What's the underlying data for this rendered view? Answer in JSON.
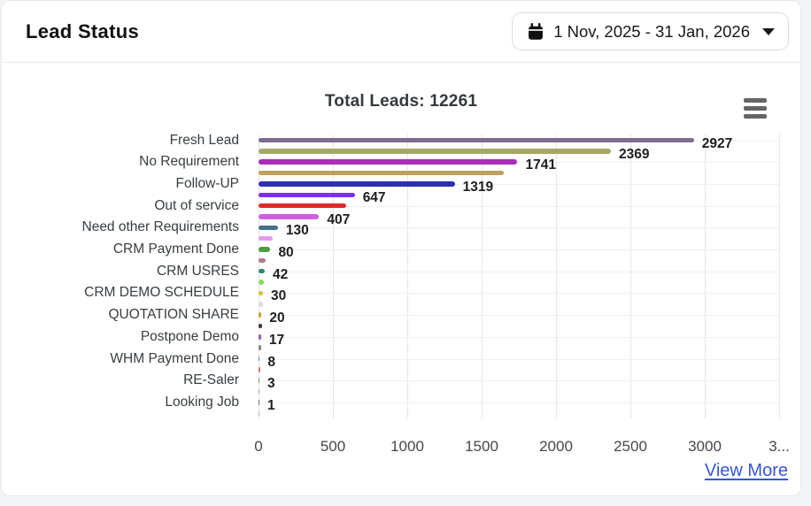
{
  "page": {
    "background": "#f3f4f6",
    "card_border": "#e5e7ea"
  },
  "header": {
    "title": "Lead Status",
    "date_range": "1 Nov, 2025 - 31 Jan, 2026"
  },
  "footer": {
    "view_more_label": "View More"
  },
  "icons": {
    "calendar": "calendar-icon",
    "caret": "caret-down-icon",
    "menu": "hamburger-menu-icon"
  },
  "chart_data": {
    "type": "bar",
    "orientation": "horizontal",
    "title": "Total Leads: 12261",
    "total_leads": 12261,
    "xlim": [
      0,
      3500
    ],
    "x_ticks": [
      {
        "value": 0,
        "label": "0"
      },
      {
        "value": 500,
        "label": "500"
      },
      {
        "value": 1000,
        "label": "1000"
      },
      {
        "value": 1500,
        "label": "1500"
      },
      {
        "value": 2000,
        "label": "2000"
      },
      {
        "value": 2500,
        "label": "2500"
      },
      {
        "value": 3000,
        "label": "3000"
      },
      {
        "value": 3500,
        "label": "3..."
      }
    ],
    "grid": true,
    "y_label_skip": "alternate rows have their category label hidden",
    "rows": [
      {
        "label": "Fresh Lead",
        "value": 2927,
        "value_label": "2927",
        "color": "#7e6b8f",
        "estimated": false
      },
      {
        "label": "",
        "value": 2369,
        "value_label": "2369",
        "color": "#a5a768",
        "estimated": false
      },
      {
        "label": "No Requirement",
        "value": 1741,
        "value_label": "1741",
        "color": "#ab2cb8",
        "estimated": false
      },
      {
        "label": "",
        "value": 1650,
        "value_label": null,
        "color": "#bfa05c",
        "estimated": true
      },
      {
        "label": "Follow-UP",
        "value": 1319,
        "value_label": "1319",
        "color": "#2d2eb4",
        "estimated": false
      },
      {
        "label": "",
        "value": 647,
        "value_label": "647",
        "color": "#7b2ff2",
        "estimated": false
      },
      {
        "label": "Out of service",
        "value": 590,
        "value_label": null,
        "color": "#e2282a",
        "estimated": true
      },
      {
        "label": "",
        "value": 407,
        "value_label": "407",
        "color": "#d05fe0",
        "estimated": false
      },
      {
        "label": "Need other Requirements",
        "value": 130,
        "value_label": "130",
        "color": "#44708e",
        "estimated": false
      },
      {
        "label": "",
        "value": 95,
        "value_label": null,
        "color": "#e49aec",
        "estimated": true
      },
      {
        "label": "CRM Payment Done",
        "value": 80,
        "value_label": "80",
        "color": "#4f9c3c",
        "estimated": false
      },
      {
        "label": "",
        "value": 50,
        "value_label": null,
        "color": "#b17b8c",
        "estimated": true
      },
      {
        "label": "CRM USRES",
        "value": 42,
        "value_label": "42",
        "color": "#2e8577",
        "estimated": false
      },
      {
        "label": "",
        "value": 38,
        "value_label": null,
        "color": "#85d957",
        "estimated": true
      },
      {
        "label": "CRM DEMO SCHEDULE",
        "value": 30,
        "value_label": "30",
        "color": "#d6c32f",
        "estimated": false
      },
      {
        "label": "",
        "value": 32,
        "value_label": null,
        "color": "#dcdce2",
        "estimated": true
      },
      {
        "label": "QUOTATION SHARE",
        "value": 20,
        "value_label": "20",
        "color": "#caa53e",
        "estimated": false
      },
      {
        "label": "",
        "value": 26,
        "value_label": null,
        "color": "#3d3d3d",
        "estimated": true
      },
      {
        "label": "Postpone Demo",
        "value": 17,
        "value_label": "17",
        "color": "#9c5fb5",
        "estimated": false
      },
      {
        "label": "",
        "value": 18,
        "value_label": null,
        "color": "#8a8a8a",
        "estimated": true
      },
      {
        "label": "WHM Payment Done",
        "value": 8,
        "value_label": "8",
        "color": "#5a8fc0",
        "estimated": false
      },
      {
        "label": "",
        "value": 12,
        "value_label": null,
        "color": "#c97f6e",
        "estimated": true
      },
      {
        "label": "RE-Saler",
        "value": 3,
        "value_label": "3",
        "color": "#6aa84f",
        "estimated": false
      },
      {
        "label": "",
        "value": 6,
        "value_label": null,
        "color": "#a0a0a0",
        "estimated": true
      },
      {
        "label": "Looking Job",
        "value": 1,
        "value_label": "1",
        "color": "#707070",
        "estimated": false
      },
      {
        "label": "",
        "value": 3,
        "value_label": null,
        "color": "#b5b5b5",
        "estimated": true
      }
    ]
  }
}
